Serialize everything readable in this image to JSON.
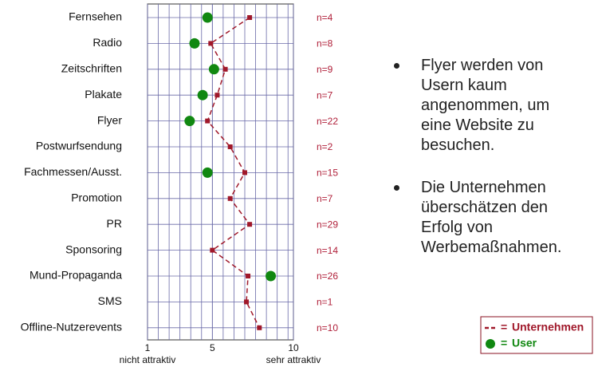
{
  "chart_data": {
    "type": "dotline",
    "categories": [
      "Fernsehen",
      "Radio",
      "Zeitschriften",
      "Plakate",
      "Flyer",
      "Postwurfsendung",
      "Fachmessen/Ausst.",
      "Promotion",
      "PR",
      "Sponsoring",
      "Mund-Propaganda",
      "SMS",
      "Offline-Nutzerevents"
    ],
    "n_labels": [
      "n=4",
      "n=8",
      "n=9",
      "n=7",
      "n=22",
      "n=2",
      "n=15",
      "n=7",
      "n=29",
      "n=14",
      "n=26",
      "n=1",
      "n=10"
    ],
    "series": [
      {
        "name": "Unternehmen",
        "color": "#a0182a",
        "values": [
          7.3,
          4.9,
          5.8,
          5.3,
          4.7,
          6.1,
          7.0,
          6.1,
          7.3,
          5.0,
          7.2,
          7.1,
          7.9
        ]
      },
      {
        "name": "User",
        "color": "#118811",
        "values": [
          4.7,
          3.9,
          5.1,
          4.4,
          3.6,
          null,
          4.7,
          null,
          null,
          null,
          8.6,
          null,
          null
        ]
      }
    ],
    "xlim": [
      1,
      10
    ],
    "xticks": [
      1,
      5,
      10
    ],
    "x_axis_labels": [
      "nicht attraktiv",
      "sehr attraktiv"
    ],
    "legend_separator": "=",
    "grid": true
  },
  "notes": [
    "Flyer werden von Usern kaum angenommen, um eine Website zu besuchen.",
    "Die Unternehmen überschätzen den Erfolg von Werbemaßnahmen."
  ]
}
